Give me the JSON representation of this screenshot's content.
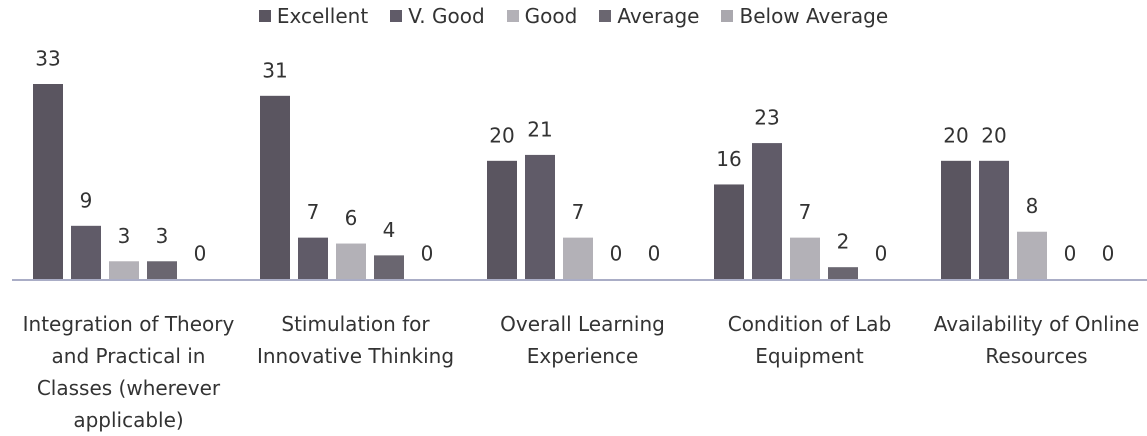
{
  "chart_data": {
    "type": "bar",
    "categories": [
      "Integration of Theory and Practical in Classes (wherever applicable)",
      "Stimulation for Innovative Thinking",
      "Overall Learning Experience",
      "Condition of Lab Equipment",
      "Availability of Online Resources"
    ],
    "series": [
      {
        "name": "Excellent",
        "color": "#5a5560",
        "values": [
          33,
          31,
          20,
          16,
          20
        ]
      },
      {
        "name": "V. Good",
        "color": "#605b68",
        "values": [
          9,
          7,
          21,
          23,
          20
        ]
      },
      {
        "name": "Good",
        "color": "#b3b1b7",
        "values": [
          3,
          6,
          7,
          7,
          8
        ]
      },
      {
        "name": "Average",
        "color": "#6a6670",
        "values": [
          3,
          4,
          0,
          2,
          0
        ]
      },
      {
        "name": "Below Average",
        "color": "#aaa8ae",
        "values": [
          0,
          0,
          0,
          0,
          0
        ]
      }
    ],
    "legend": "top"
  }
}
